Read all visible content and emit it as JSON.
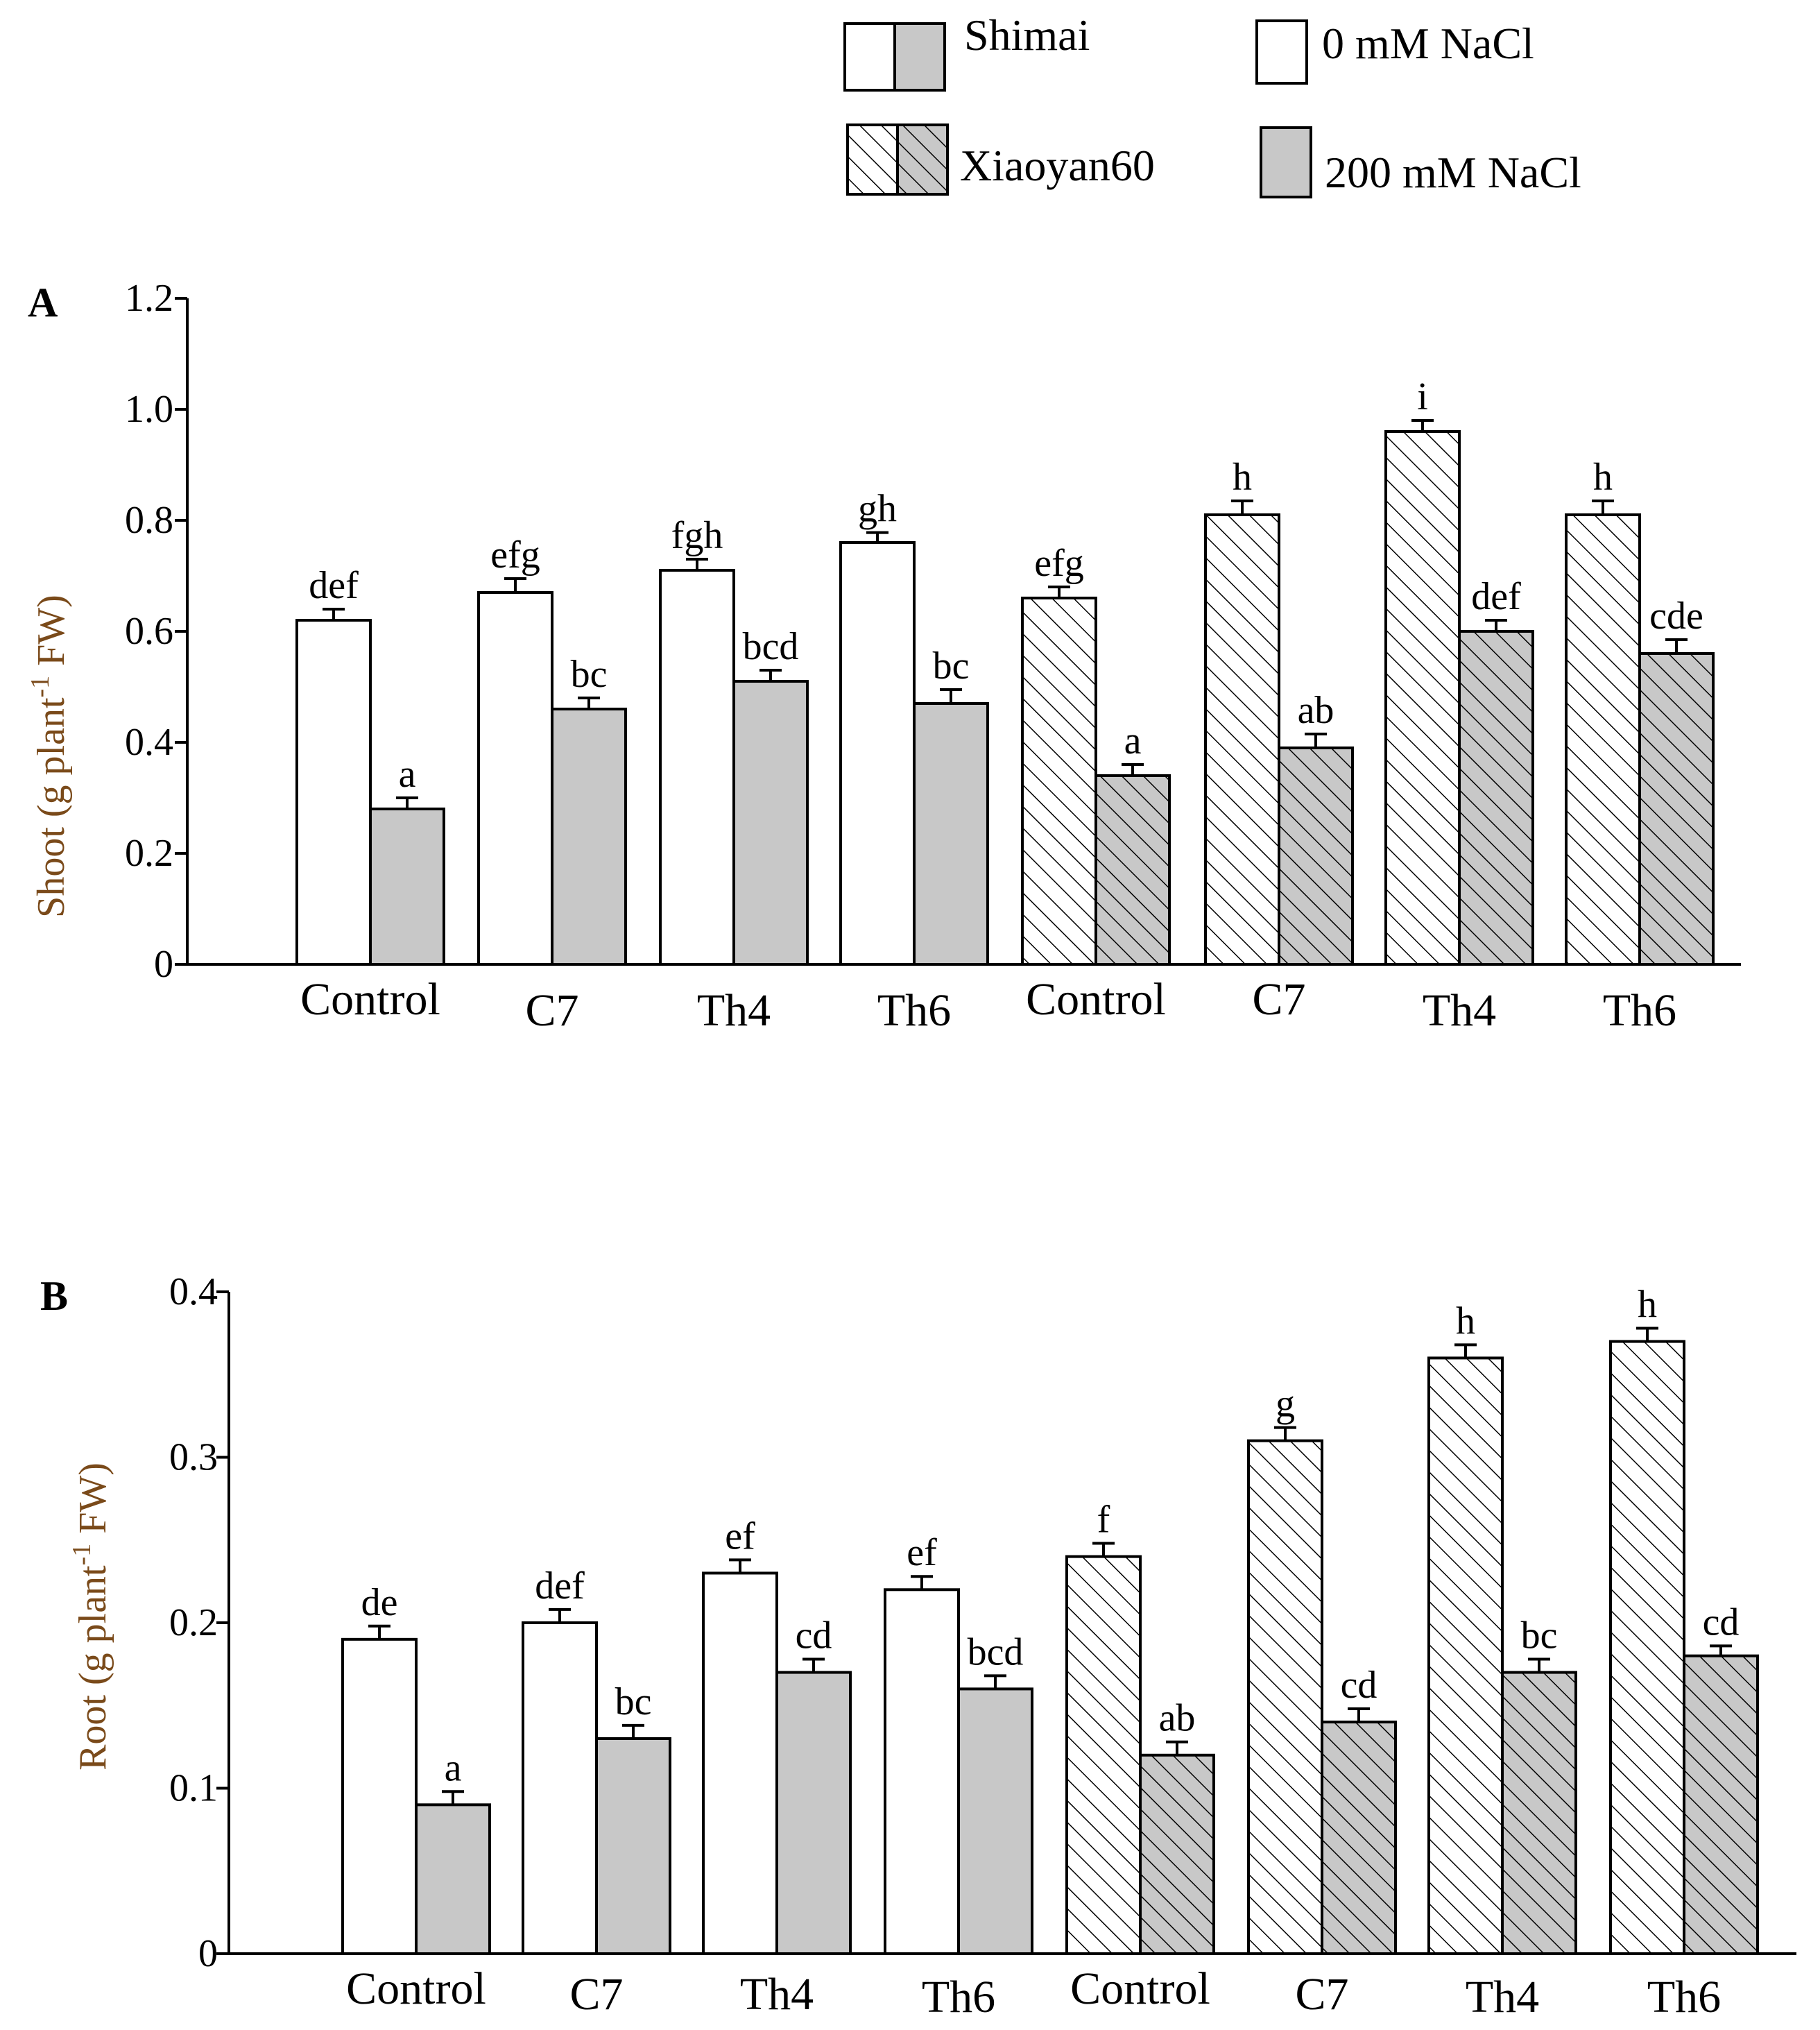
{
  "colors": {
    "control": "#ffffff",
    "salt": "#c8c8c8",
    "axis_label": "#7a4a1a",
    "stroke": "#000000"
  },
  "legend": {
    "cultivars": [
      "Shimai",
      "Xiaoyan60"
    ],
    "treatments": [
      "0 mM NaCl",
      "200 mM NaCl"
    ]
  },
  "chart_data": [
    {
      "panel": "A",
      "type": "bar",
      "ylabel": "Shoot (g plant-1 FW)",
      "ylabel_main": "Shoot (g plant",
      "ylabel_sup": "-1",
      "ylabel_end": " FW)",
      "ylim": [
        0,
        1.2
      ],
      "yticks": [
        "0",
        "0.2",
        "0.4",
        "0.6",
        "0.8",
        "1.0",
        "1.2"
      ],
      "categories": [
        "Control",
        "C7",
        "Th4",
        "Th6",
        "Control",
        "C7",
        "Th4",
        "Th6"
      ],
      "cultivar_of_category": [
        "Shimai",
        "Shimai",
        "Shimai",
        "Shimai",
        "Xiaoyan60",
        "Xiaoyan60",
        "Xiaoyan60",
        "Xiaoyan60"
      ],
      "series": [
        {
          "name": "0 mM NaCl",
          "values": [
            0.62,
            0.67,
            0.71,
            0.76,
            0.66,
            0.81,
            0.96,
            0.81
          ],
          "errors": [
            0.02,
            0.025,
            0.02,
            0.018,
            0.02,
            0.025,
            0.02,
            0.025
          ],
          "letters": [
            "def",
            "efg",
            "fgh",
            "gh",
            "efg",
            "h",
            "i",
            "h"
          ]
        },
        {
          "name": "200 mM NaCl",
          "values": [
            0.28,
            0.46,
            0.51,
            0.47,
            0.34,
            0.39,
            0.6,
            0.56
          ],
          "errors": [
            0.02,
            0.02,
            0.02,
            0.025,
            0.02,
            0.025,
            0.02,
            0.025
          ],
          "letters": [
            "a",
            "bc",
            "bcd",
            "bc",
            "a",
            "ab",
            "def",
            "cde"
          ]
        }
      ]
    },
    {
      "panel": "B",
      "type": "bar",
      "ylabel": "Root (g plant-1 FW)",
      "ylabel_main": "Root (g plant",
      "ylabel_sup": "-1",
      "ylabel_end": " FW)",
      "ylim": [
        0,
        0.4
      ],
      "yticks": [
        "0",
        "0.1",
        "0.2",
        "0.3",
        "0.4"
      ],
      "categories": [
        "Control",
        "C7",
        "Th4",
        "Th6",
        "Control",
        "C7",
        "Th4",
        "Th6"
      ],
      "cultivar_of_category": [
        "Shimai",
        "Shimai",
        "Shimai",
        "Shimai",
        "Xiaoyan60",
        "Xiaoyan60",
        "Xiaoyan60",
        "Xiaoyan60"
      ],
      "series": [
        {
          "name": "0 mM NaCl",
          "values": [
            0.19,
            0.2,
            0.23,
            0.22,
            0.24,
            0.31,
            0.36,
            0.37
          ],
          "errors": [
            0.008,
            0.008,
            0.008,
            0.008,
            0.008,
            0.008,
            0.008,
            0.008
          ],
          "letters": [
            "de",
            "def",
            "ef",
            "ef",
            "f",
            "g",
            "h",
            "h"
          ]
        },
        {
          "name": "200 mM NaCl",
          "values": [
            0.09,
            0.13,
            0.17,
            0.16,
            0.12,
            0.14,
            0.17,
            0.18
          ],
          "errors": [
            0.008,
            0.008,
            0.008,
            0.008,
            0.008,
            0.008,
            0.008,
            0.006
          ],
          "letters": [
            "a",
            "bc",
            "cd",
            "bcd",
            "ab",
            "cd",
            "bc",
            "cd"
          ]
        }
      ]
    }
  ]
}
